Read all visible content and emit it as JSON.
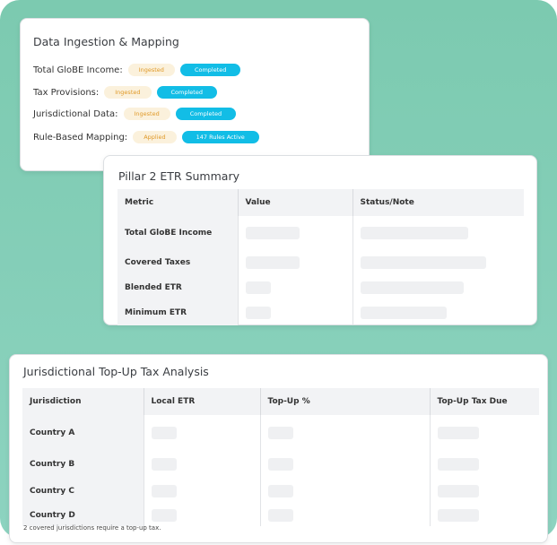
{
  "ingestion": {
    "title": "Data Ingestion & Mapping",
    "rows": [
      {
        "label": "Total GloBE Income:",
        "tag": "Ingested",
        "status": "Completed"
      },
      {
        "label": "Tax Provisions:",
        "tag": "Ingested",
        "status": "Completed"
      },
      {
        "label": "Jurisdictional Data:",
        "tag": "Ingested",
        "status": "Completed"
      },
      {
        "label": "Rule-Based Mapping:",
        "tag": "Applied",
        "status": "147 Rules Active"
      }
    ]
  },
  "etr": {
    "title": "Pillar 2 ETR Summary",
    "headers": [
      "Metric",
      "Value",
      "Status/Note"
    ],
    "rows": [
      "Total GloBE Income",
      "Covered Taxes",
      "Blended ETR",
      "Minimum ETR"
    ]
  },
  "topup": {
    "title": "Jurisdictional Top-Up Tax Analysis",
    "headers": [
      "Jurisdiction",
      "Local ETR",
      "Top-Up %",
      "Top-Up Tax Due"
    ],
    "rows": [
      "Country A",
      "Country B",
      "Country C",
      "Country D"
    ],
    "note": "2 covered jurisdictions require a top-up tax."
  },
  "colors": {
    "background": "#7ccab0",
    "completed": "#12bde6",
    "ingested": "#fbf1dc"
  }
}
